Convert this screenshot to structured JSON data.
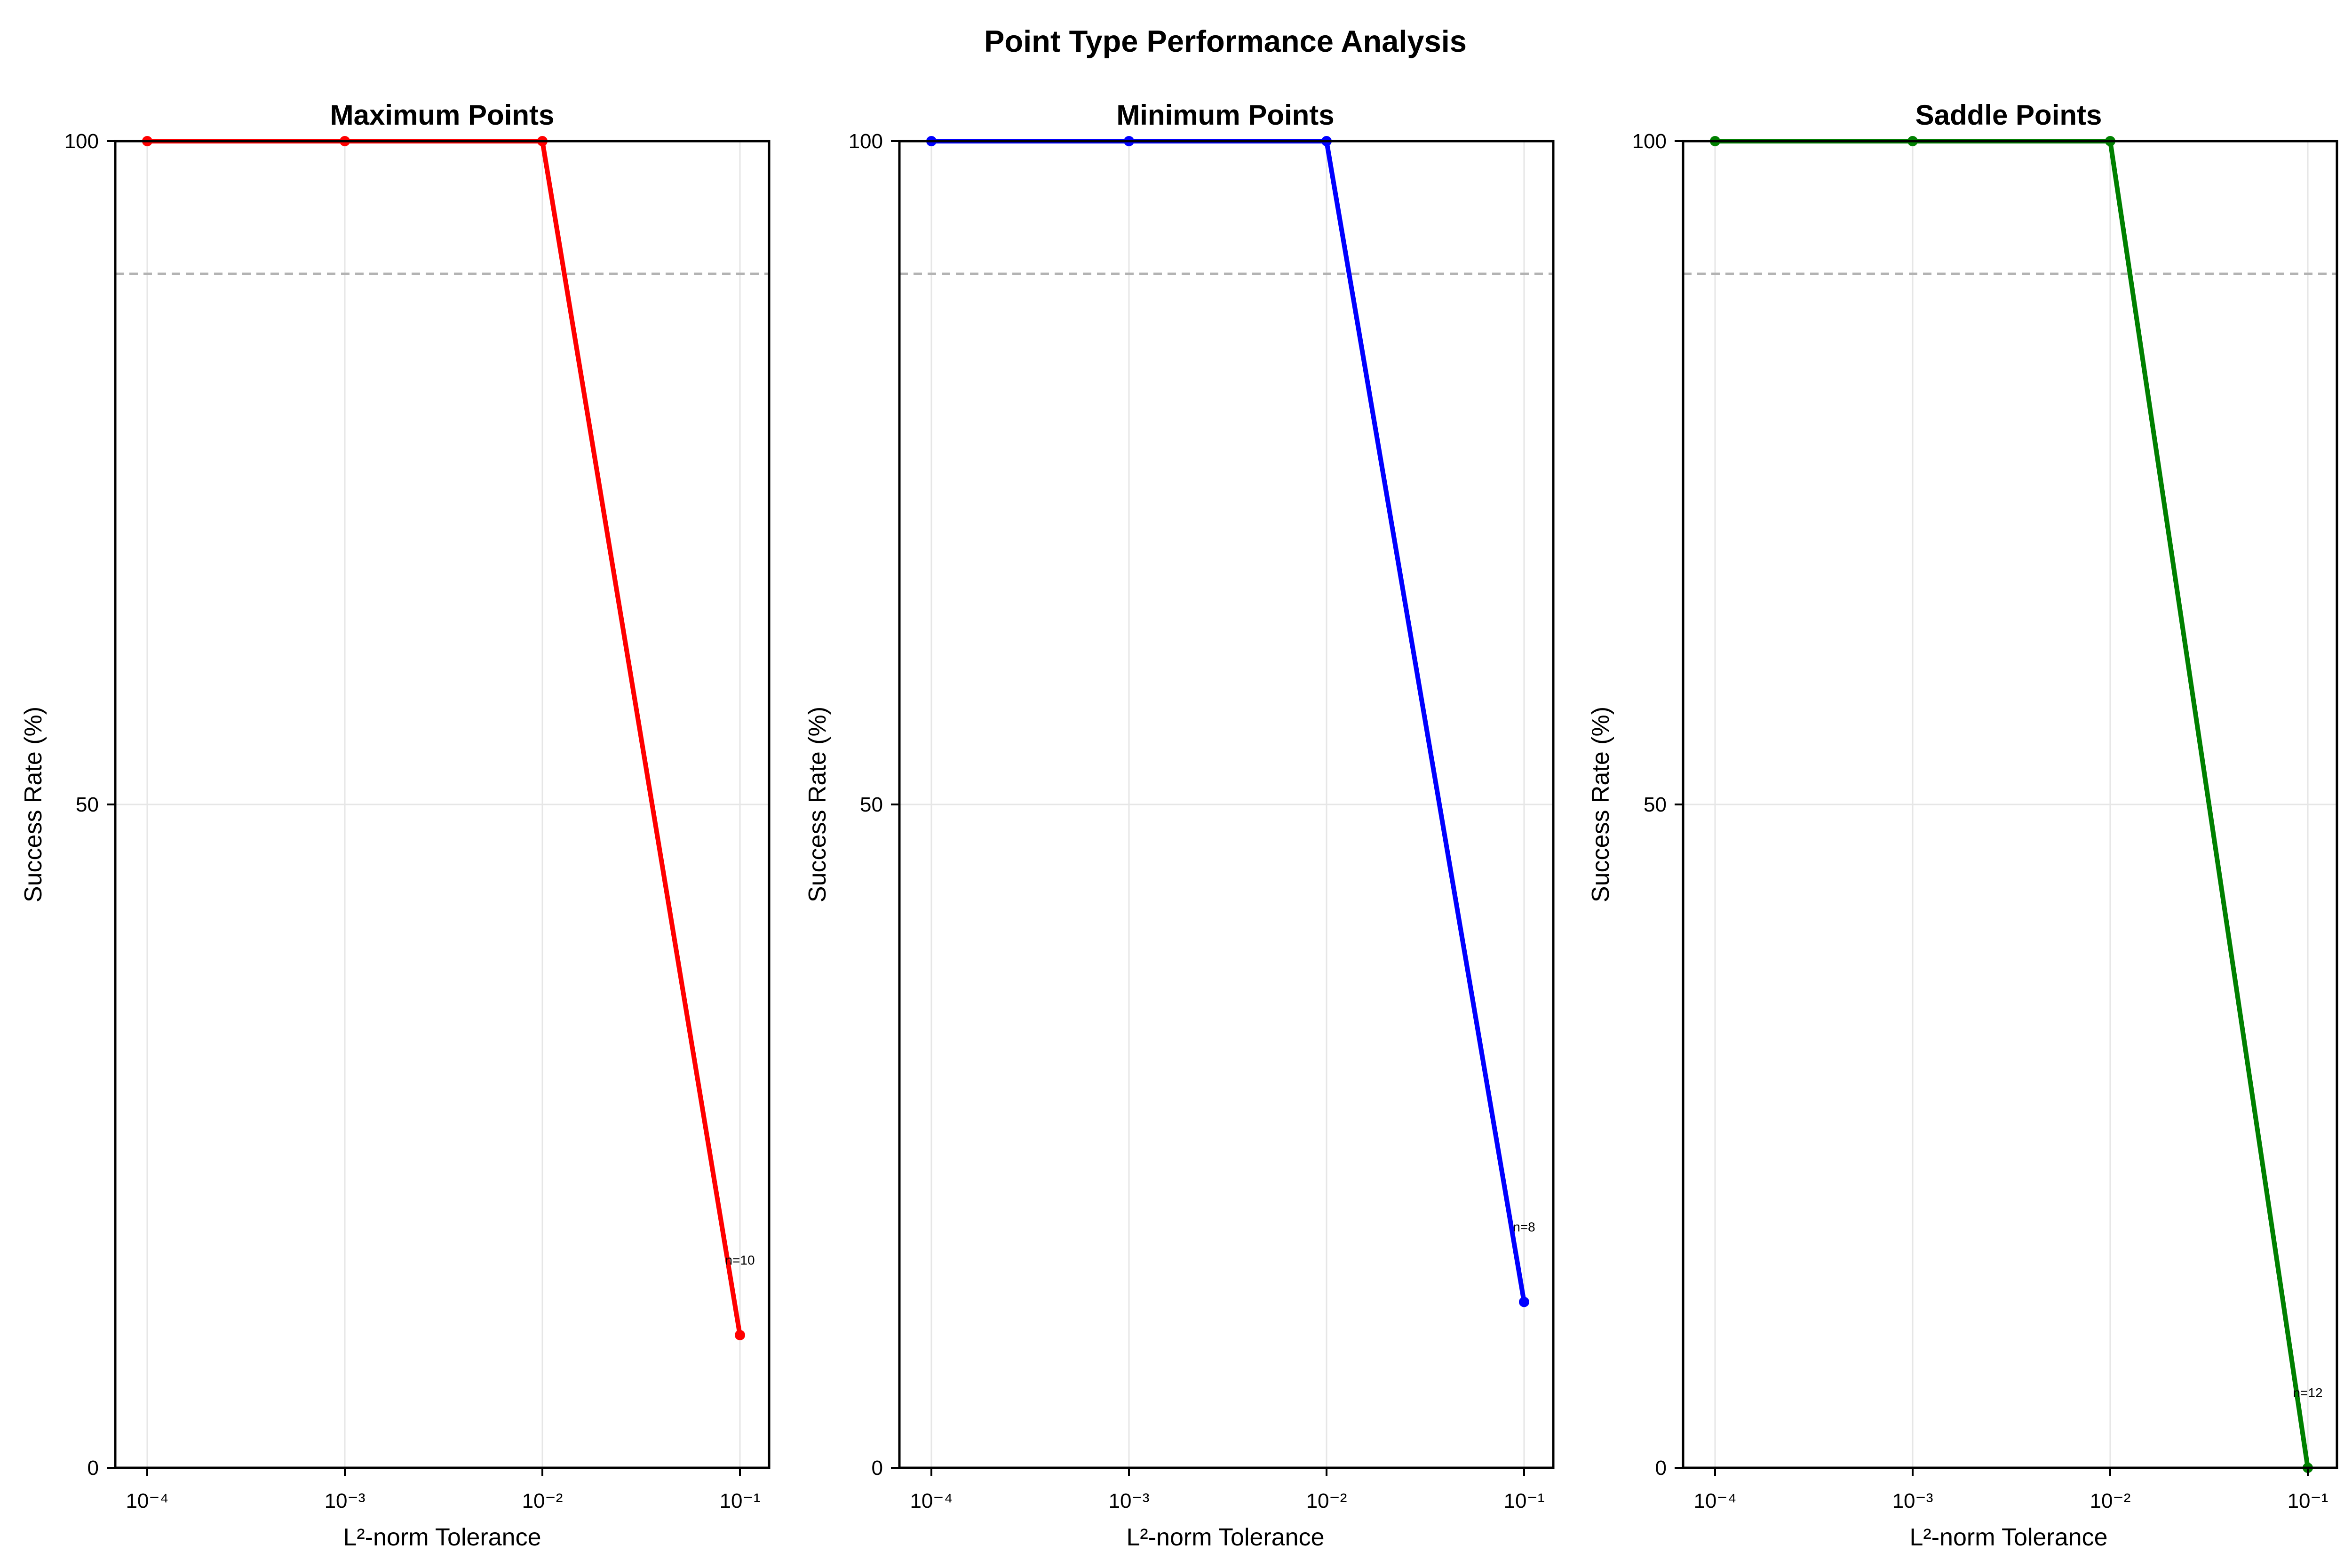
{
  "figure": {
    "title": "Point Type Performance Analysis",
    "reference_line_y": 90
  },
  "chart_data": [
    {
      "type": "line",
      "title": "Maximum Points",
      "xlabel": "L²-norm Tolerance",
      "ylabel": "Success Rate (%)",
      "x_scale": "log10",
      "x": [
        0.0001,
        0.001,
        0.01,
        0.1
      ],
      "x_tick_labels": [
        "10⁻⁴",
        "10⁻³",
        "10⁻²",
        "10⁻¹"
      ],
      "y_ticks": [
        0,
        50,
        100
      ],
      "ylim": [
        0,
        100
      ],
      "series": [
        {
          "values": [
            100,
            100,
            100,
            10
          ],
          "color": "#ff0000"
        }
      ],
      "annotation": {
        "text": "n=10",
        "x": 0.1
      },
      "grid": true
    },
    {
      "type": "line",
      "title": "Minimum Points",
      "xlabel": "L²-norm Tolerance",
      "ylabel": "Success Rate (%)",
      "x_scale": "log10",
      "x": [
        0.0001,
        0.001,
        0.01,
        0.1
      ],
      "x_tick_labels": [
        "10⁻⁴",
        "10⁻³",
        "10⁻²",
        "10⁻¹"
      ],
      "y_ticks": [
        0,
        50,
        100
      ],
      "ylim": [
        0,
        100
      ],
      "series": [
        {
          "values": [
            100,
            100,
            100,
            12.5
          ],
          "color": "#0000ff"
        }
      ],
      "annotation": {
        "text": "n=8",
        "x": 0.1
      },
      "grid": true
    },
    {
      "type": "line",
      "title": "Saddle Points",
      "xlabel": "L²-norm Tolerance",
      "ylabel": "Success Rate (%)",
      "x_scale": "log10",
      "x": [
        0.0001,
        0.001,
        0.01,
        0.1
      ],
      "x_tick_labels": [
        "10⁻⁴",
        "10⁻³",
        "10⁻²",
        "10⁻¹"
      ],
      "y_ticks": [
        0,
        50,
        100
      ],
      "ylim": [
        0,
        100
      ],
      "series": [
        {
          "values": [
            100,
            100,
            100,
            0
          ],
          "color": "#008000"
        }
      ],
      "annotation": {
        "text": "n=12",
        "x": 0.1
      },
      "grid": true
    }
  ]
}
